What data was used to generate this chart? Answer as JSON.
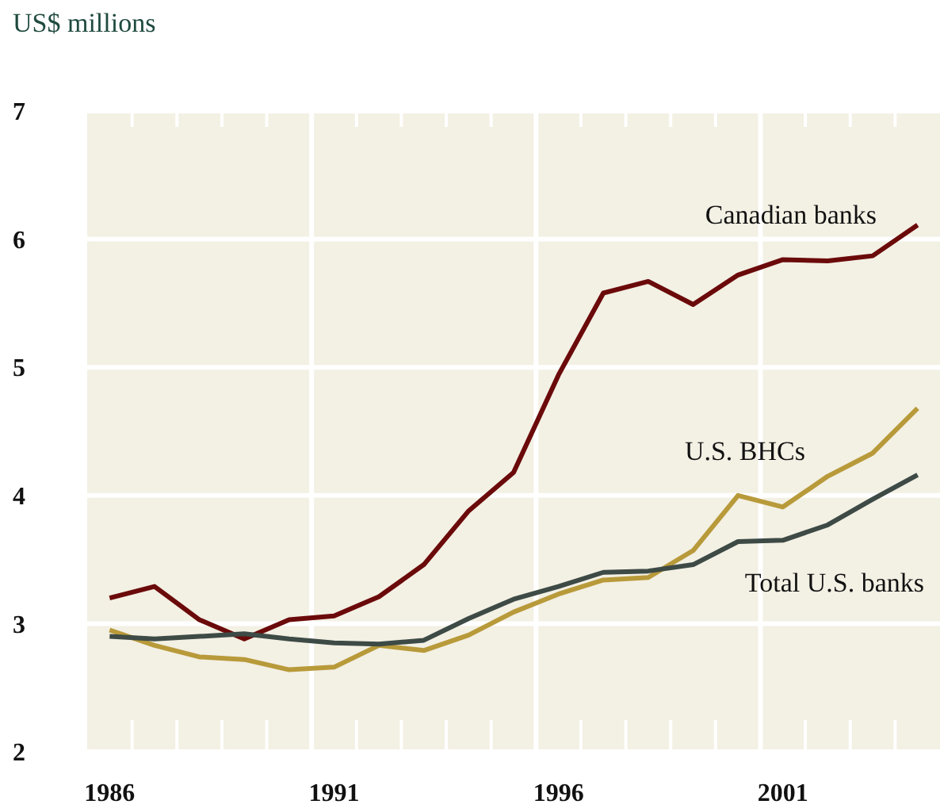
{
  "chart_data": {
    "type": "line",
    "ylabel": "US$ millions",
    "x": [
      1986,
      1987,
      1988,
      1989,
      1990,
      1991,
      1992,
      1993,
      1994,
      1995,
      1996,
      1997,
      1998,
      1999,
      2000,
      2001,
      2002,
      2003,
      2004
    ],
    "series": [
      {
        "name": "Canadian banks",
        "color": "#6b0a0a",
        "values": [
          3.2,
          3.29,
          3.03,
          2.88,
          3.03,
          3.06,
          3.21,
          3.46,
          3.88,
          4.18,
          4.94,
          5.58,
          5.67,
          5.49,
          5.72,
          5.84,
          5.83,
          5.87,
          6.11
        ]
      },
      {
        "name": "U.S. BHCs",
        "color": "#b89a3a",
        "values": [
          2.95,
          2.83,
          2.74,
          2.72,
          2.64,
          2.66,
          2.83,
          2.79,
          2.91,
          3.09,
          3.23,
          3.34,
          3.36,
          3.57,
          4.0,
          3.91,
          4.15,
          4.33,
          4.68
        ]
      },
      {
        "name": "Total U.S. banks",
        "color": "#3d4a45",
        "values": [
          2.9,
          2.88,
          2.9,
          2.92,
          2.88,
          2.85,
          2.84,
          2.87,
          3.04,
          3.19,
          3.29,
          3.4,
          3.41,
          3.46,
          3.64,
          3.65,
          3.77,
          3.97,
          4.16
        ]
      }
    ],
    "xlim": [
      1985.5,
      2004.5
    ],
    "xticks": [
      {
        "value": 1986,
        "label": "1986"
      },
      {
        "value": 1991,
        "label": "1991"
      },
      {
        "value": 1996,
        "label": "1996"
      },
      {
        "value": 2001,
        "label": "2001"
      },
      {
        "value": 1986.5,
        "label": null
      },
      {
        "value": 1987.5,
        "label": null
      },
      {
        "value": 1988.5,
        "label": null
      },
      {
        "value": 1989.5,
        "label": null
      },
      {
        "value": 1991.5,
        "label": null
      },
      {
        "value": 1992.5,
        "label": null
      },
      {
        "value": 1993.5,
        "label": null
      },
      {
        "value": 1994.5,
        "label": null
      },
      {
        "value": 1996.5,
        "label": null
      },
      {
        "value": 1997.5,
        "label": null
      },
      {
        "value": 1998.5,
        "label": null
      },
      {
        "value": 1999.5,
        "label": null
      },
      {
        "value": 2001.5,
        "label": null
      },
      {
        "value": 2002.5,
        "label": null
      },
      {
        "value": 2003.5,
        "label": null
      }
    ],
    "ylim": [
      2,
      7
    ],
    "yticks": [
      2,
      3,
      4,
      5,
      6,
      7
    ],
    "grid": "y",
    "ref_lines": [
      {
        "axis": "x",
        "value": 1990.5,
        "color": "#ffffff"
      },
      {
        "axis": "x",
        "value": 1995.5,
        "color": "#ffffff"
      },
      {
        "axis": "x",
        "value": 2000.5,
        "color": "#ffffff"
      }
    ],
    "legend": false,
    "marker": "none",
    "line_style": "solid"
  }
}
